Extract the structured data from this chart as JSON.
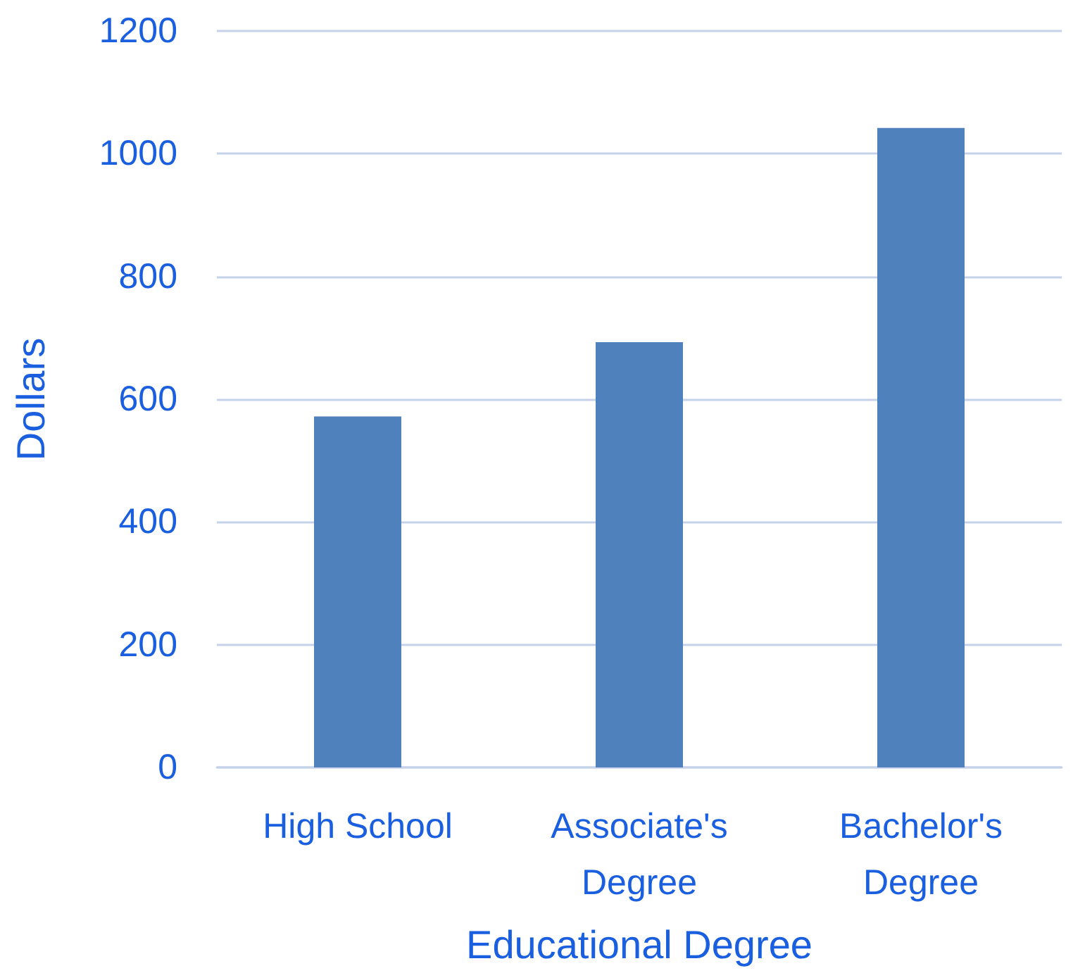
{
  "chart_data": {
    "type": "bar",
    "xlabel": "Educational Degree",
    "ylabel": "Dollars",
    "categories": [
      "High School",
      "Associate's\nDegree",
      "Bachelor's\nDegree"
    ],
    "values": [
      572,
      693,
      1042
    ],
    "color": "#4f81bd",
    "ylim": [
      0,
      1200
    ],
    "yticks": [
      0,
      200,
      400,
      600,
      800,
      1000,
      1200
    ],
    "grid": "y"
  }
}
